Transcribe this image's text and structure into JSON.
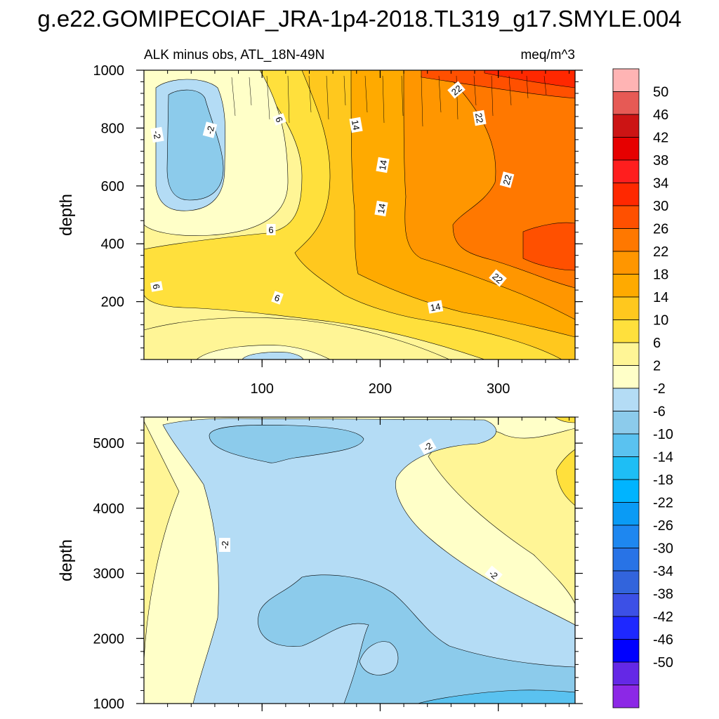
{
  "chart_data": {
    "title": "g.e22.GOMIPECOIAF_JRA-1p4-2018.TL319_g17.SMYLE.004",
    "type": "filled-contour",
    "colorbar": {
      "labels": [
        "50",
        "46",
        "42",
        "38",
        "34",
        "30",
        "26",
        "22",
        "18",
        "14",
        "10",
        "6",
        "2",
        "-2",
        "-6",
        "-10",
        "-14",
        "-18",
        "-22",
        "-26",
        "-30",
        "-34",
        "-38",
        "-42",
        "-46",
        "-50"
      ],
      "colors": [
        "#ffb4b4",
        "#e65a55",
        "#cc1414",
        "#e60000",
        "#ff1e1e",
        "#ff2800",
        "#ff5000",
        "#ff7800",
        "#ff9600",
        "#ffaa00",
        "#ffc81e",
        "#ffe03c",
        "#fff596",
        "#ffffc8",
        "#b4dcf5",
        "#8ccbeb",
        "#5ac2f0",
        "#1ebef5",
        "#00b4ff",
        "#0a9bf5",
        "#1e87f0",
        "#2873e6",
        "#3264dc",
        "#3c50e6",
        "#1e28ff",
        "#0000ff",
        "#6428e6",
        "#8c28e6"
      ]
    },
    "panels": [
      {
        "subtitle_left": "ALK minus obs, ATL_18N-49N",
        "subtitle_right": "meq/m^3",
        "ylabel": "depth",
        "ylim": [
          1000,
          0
        ],
        "xlim": [
          0,
          365
        ],
        "xticks": [
          "100",
          "200",
          "300"
        ],
        "yticks": [
          "200",
          "400",
          "600",
          "800",
          "1000"
        ],
        "contour_labels": [
          "22",
          "22",
          "22",
          "22",
          "14",
          "14",
          "14",
          "14",
          "6",
          "6",
          "6",
          "6",
          "-2",
          "-2"
        ]
      },
      {
        "ylabel": "depth",
        "ylim": [
          5400,
          1000
        ],
        "xlim": [
          0,
          365
        ],
        "yticks": [
          "1000",
          "2000",
          "3000",
          "4000",
          "5000"
        ],
        "contour_labels": [
          "-2",
          "-2",
          "-2"
        ]
      }
    ]
  }
}
